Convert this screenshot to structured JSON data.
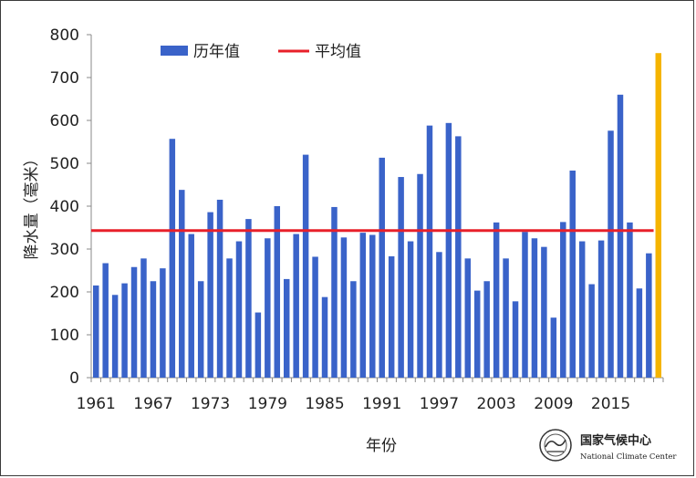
{
  "chart_data": {
    "type": "bar",
    "ylabel": "降水量（毫米）",
    "xlabel": "年份",
    "ylim": [
      0,
      800
    ],
    "yticks": [
      0,
      100,
      200,
      300,
      400,
      500,
      600,
      700,
      800
    ],
    "xticks": [
      "1961",
      "1967",
      "1973",
      "1979",
      "1985",
      "1991",
      "1997",
      "2003",
      "2009",
      "2015"
    ],
    "legend_position": "top-left",
    "legend": {
      "bars_label": "历年值",
      "mean_label": "平均值"
    },
    "colors": {
      "bars": "#3a63c9",
      "mean_line": "#e8202a",
      "highlight": "#f5b400"
    },
    "categories": [
      "1961",
      "1962",
      "1963",
      "1964",
      "1965",
      "1966",
      "1967",
      "1968",
      "1969",
      "1970",
      "1971",
      "1972",
      "1973",
      "1974",
      "1975",
      "1976",
      "1977",
      "1978",
      "1979",
      "1980",
      "1981",
      "1982",
      "1983",
      "1984",
      "1985",
      "1986",
      "1987",
      "1988",
      "1989",
      "1990",
      "1991",
      "1992",
      "1993",
      "1994",
      "1995",
      "1996",
      "1997",
      "1998",
      "1999",
      "2000",
      "2001",
      "2002",
      "2003",
      "2004",
      "2005",
      "2006",
      "2007",
      "2008",
      "2009",
      "2010",
      "2011",
      "2012",
      "2013",
      "2014",
      "2015",
      "2016",
      "2017",
      "2018",
      "2019",
      "2020"
    ],
    "series": [
      {
        "values": [
          215,
          267,
          193,
          220,
          258,
          278,
          225,
          255,
          557,
          438,
          335,
          225,
          386,
          415,
          278,
          318,
          370,
          152,
          325,
          400,
          230,
          335,
          520,
          282,
          188,
          398,
          327,
          225,
          338,
          333,
          513,
          283,
          468,
          318,
          475,
          588,
          293,
          594,
          563,
          278,
          203,
          225,
          362,
          278,
          178,
          340,
          325,
          305,
          140,
          363,
          483,
          318,
          218,
          320,
          576,
          660,
          362,
          208,
          290,
          757
        ]
      }
    ],
    "mean": 343,
    "highlight_category": "2020",
    "logo": {
      "name_cn": "国家气候中心",
      "name_en": "National Climate Center"
    }
  }
}
